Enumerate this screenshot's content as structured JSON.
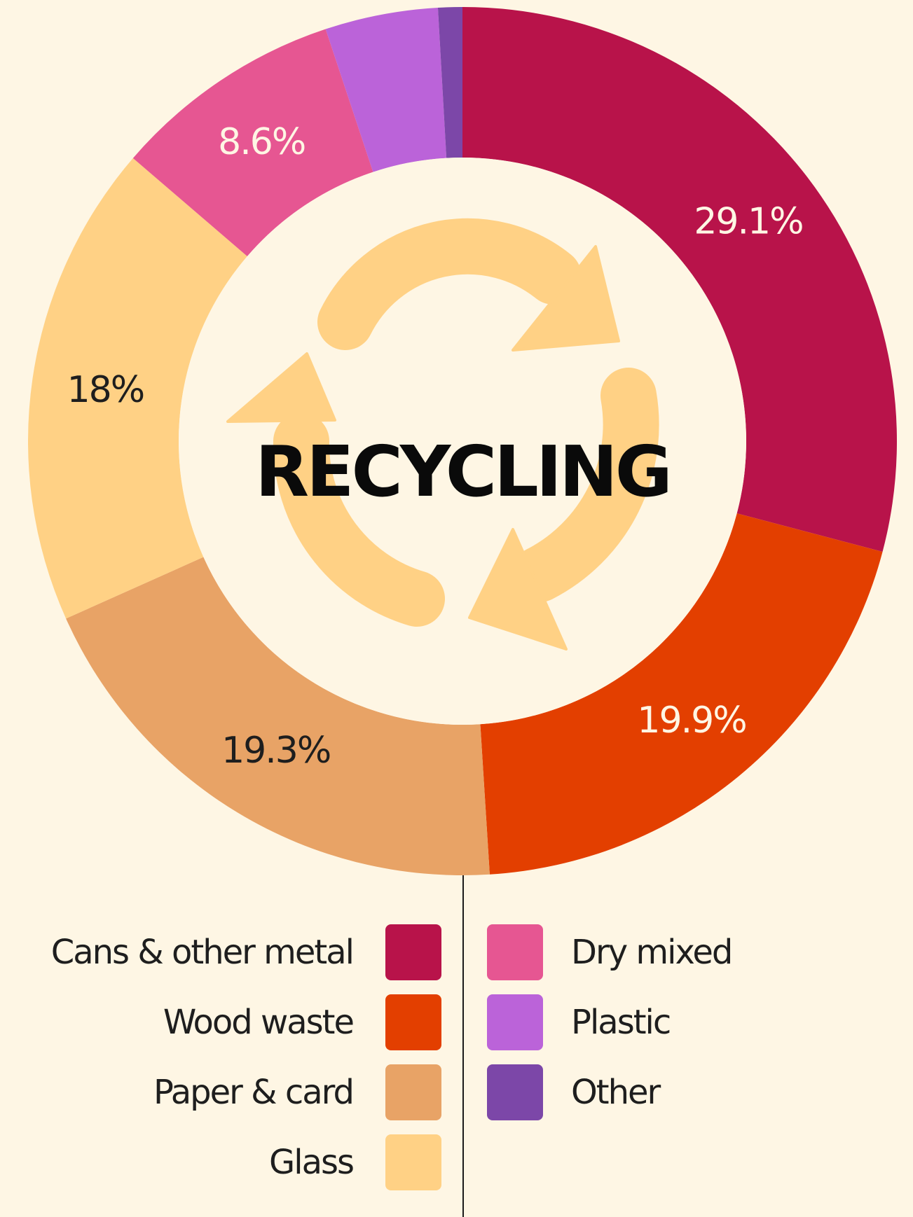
{
  "chart_data": {
    "type": "pie",
    "title": "RECYCLING",
    "categories": [
      "Cans & other metal",
      "Wood waste",
      "Paper & card",
      "Glass",
      "Dry mixed",
      "Plastic",
      "Other"
    ],
    "values": [
      29.1,
      19.9,
      19.3,
      18.0,
      8.6,
      4.2,
      0.9
    ],
    "data_labels": [
      "29.1%",
      "19.9%",
      "19.3%",
      "18%",
      "8.6%",
      "",
      ""
    ],
    "colors": [
      "#b8134a",
      "#e33f00",
      "#e8a366",
      "#ffd185",
      "#e65692",
      "#bb63d9",
      "#7c47a8"
    ],
    "label_colors": [
      "#fef6e4",
      "#fef6e4",
      "#1e1e1e",
      "#1e1e1e",
      "#fef6e4",
      "#fef6e4",
      "#fef6e4"
    ],
    "legend_placement": "bottom",
    "donut": true
  },
  "legend": {
    "left": [
      {
        "label": "Cans & other metal",
        "color": "#b8134a"
      },
      {
        "label": "Wood waste",
        "color": "#e33f00"
      },
      {
        "label": "Paper & card",
        "color": "#e8a366"
      },
      {
        "label": "Glass",
        "color": "#ffd185"
      }
    ],
    "right": [
      {
        "label": "Dry mixed",
        "color": "#e65692"
      },
      {
        "label": "Plastic",
        "color": "#bb63d9"
      },
      {
        "label": "Other",
        "color": "#7c47a8"
      }
    ]
  },
  "icon": {
    "name": "recycle-arrows-icon",
    "color": "#ffd185"
  }
}
